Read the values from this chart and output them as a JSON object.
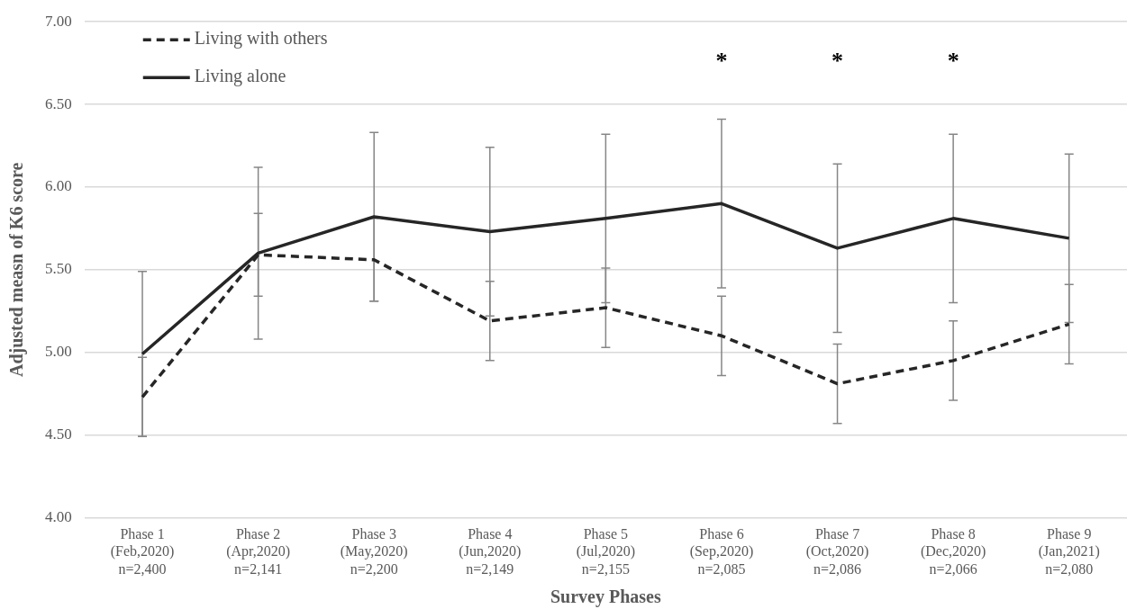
{
  "chart_data": {
    "type": "line",
    "xlabel": "Survey Phases",
    "ylabel": "Adjusted measn of K6 score",
    "categories": [
      "Phase 1\n(Feb,2020)\nn=2,400",
      "Phase 2\n(Apr,2020)\nn=2,141",
      "Phase 3\n(May,2020)\nn=2,200",
      "Phase 4\n(Jun,2020)\nn=2,149",
      "Phase 5\n(Jul,2020)\nn=2,155",
      "Phase 6\n(Sep,2020)\nn=2,085",
      "Phase 7\n(Oct,2020)\nn=2,086",
      "Phase 8\n(Dec,2020)\nn=2,066",
      "Phase 9\n(Jan,2021)\nn=2,080"
    ],
    "series": [
      {
        "name": "Living with others",
        "color": "#262626",
        "line_style": "dashed",
        "values": [
          4.73,
          5.59,
          5.56,
          5.19,
          5.27,
          5.1,
          4.81,
          4.95,
          5.17
        ],
        "errors": [
          0.24,
          0.25,
          0.25,
          0.24,
          0.24,
          0.24,
          0.24,
          0.24,
          0.24
        ]
      },
      {
        "name": "Living alone",
        "color": "#262626",
        "line_style": "solid",
        "values": [
          4.99,
          5.6,
          5.82,
          5.73,
          5.81,
          5.9,
          5.63,
          5.81,
          5.69
        ],
        "errors": [
          0.5,
          0.52,
          0.51,
          0.51,
          0.51,
          0.51,
          0.51,
          0.51,
          0.51
        ]
      }
    ],
    "ylim": [
      4,
      7
    ],
    "yticks": [
      {
        "value": 4,
        "label": "4.00"
      },
      {
        "value": 4.5,
        "label": "4.50"
      },
      {
        "value": 5,
        "label": "5.00"
      },
      {
        "value": 5.5,
        "label": "5.50"
      },
      {
        "value": 6,
        "label": "6.00"
      },
      {
        "value": 6.5,
        "label": "6.50"
      },
      {
        "value": 7,
        "label": "7.00"
      }
    ],
    "grid": "y",
    "legend": "top left",
    "marker": "none",
    "annotations": [
      "*",
      "*",
      "*"
    ]
  }
}
